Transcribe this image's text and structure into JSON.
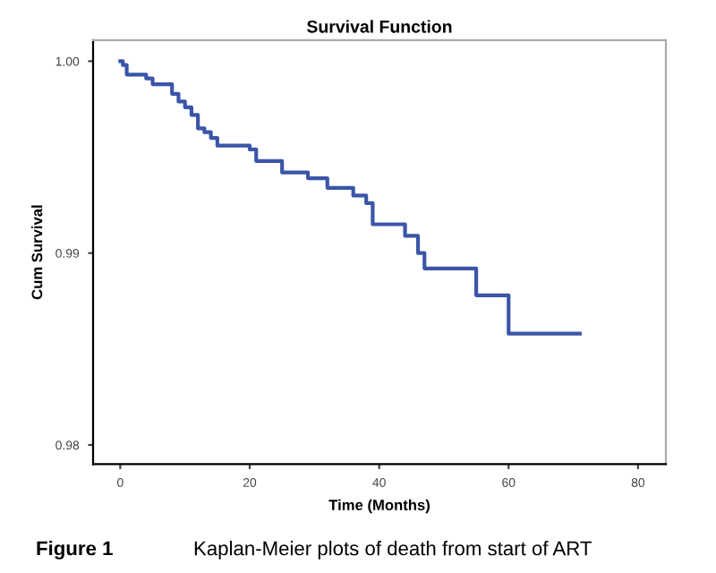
{
  "chart_data": {
    "type": "step",
    "title": "Survival Function",
    "xlabel": "Time (Months)",
    "ylabel": "Cum Survival",
    "x": [
      0,
      0.4,
      1,
      4,
      5,
      8,
      9,
      10,
      11,
      12,
      13,
      14,
      15,
      20,
      21,
      25,
      29,
      32,
      36,
      38,
      39,
      44,
      46,
      47,
      55,
      60,
      71
    ],
    "series": [
      {
        "color": "#3b55a8",
        "values": [
          1.0,
          0.9998,
          0.9993,
          0.9991,
          0.9988,
          0.9983,
          0.9979,
          0.9976,
          0.9972,
          0.9965,
          0.9963,
          0.996,
          0.9956,
          0.9954,
          0.9948,
          0.9942,
          0.9939,
          0.9934,
          0.993,
          0.9926,
          0.9915,
          0.9909,
          0.99,
          0.9892,
          0.9878,
          0.9858,
          0.9858
        ]
      }
    ],
    "xlim": [
      -4.2,
      84.3
    ],
    "ylim": [
      0.979,
      1.0011
    ],
    "xticks": [
      0,
      20,
      40,
      60,
      80
    ],
    "yticks": [
      {
        "value": 1.0,
        "label": "1.00"
      },
      {
        "value": 0.99,
        "label": "0.99"
      },
      {
        "value": 0.98,
        "label": "0.98"
      }
    ],
    "annotations": [
      "Figure 1",
      "Kaplan-Meier plots of death from start of ART"
    ],
    "grid": false,
    "legend": false
  }
}
